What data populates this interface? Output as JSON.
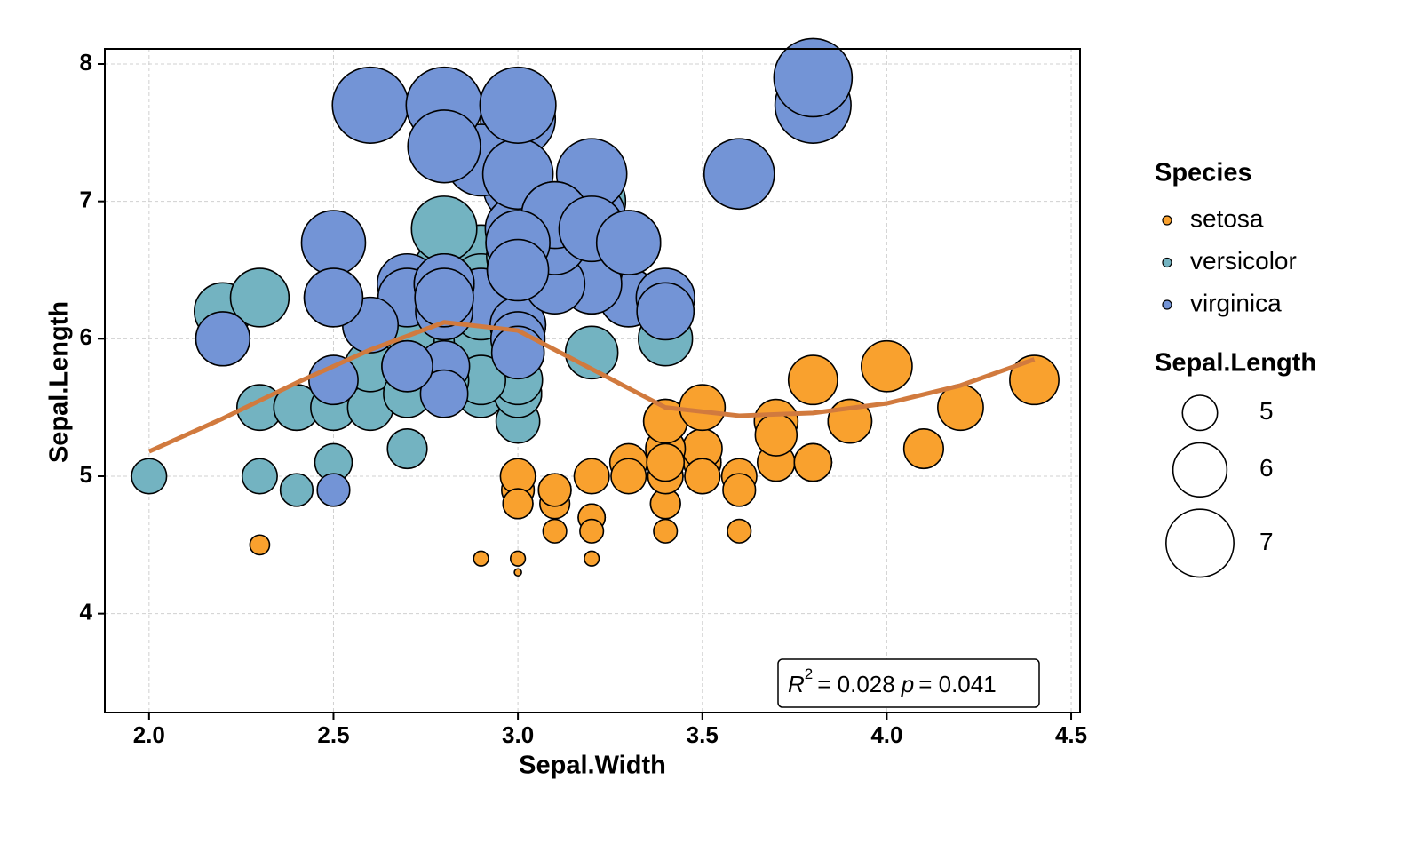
{
  "chart_data": {
    "type": "scatter",
    "x_label": "Sepal.Width",
    "y_label": "Sepal.Length",
    "xlim": [
      1.88,
      4.524
    ],
    "ylim": [
      3.28,
      8.11
    ],
    "xticks": [
      {
        "value": 2,
        "label": "2.0"
      },
      2.5,
      {
        "value": 3,
        "label": "3.0"
      },
      3.5,
      {
        "value": 4,
        "label": "4.0"
      },
      4.5
    ],
    "yticks": [
      4,
      5,
      6,
      7,
      8
    ],
    "grid": true,
    "legend_title": "Species",
    "size_legend_title": "Sepal.Length",
    "size_legend": [
      5,
      6,
      7
    ],
    "series": [
      {
        "name": "setosa",
        "color": "#f9a12e",
        "x": [
          3.5,
          3.0,
          3.2,
          3.1,
          3.6,
          3.9,
          3.4,
          3.4,
          2.9,
          3.1,
          3.7,
          3.4,
          3.0,
          3.0,
          4.0,
          4.4,
          3.9,
          3.5,
          3.8,
          3.8,
          3.4,
          3.7,
          3.6,
          3.3,
          3.4,
          3.0,
          3.4,
          3.5,
          3.4,
          3.2,
          3.1,
          3.4,
          4.1,
          4.2,
          3.1,
          3.2,
          3.5,
          3.6,
          3.0,
          3.4,
          3.5,
          2.3,
          3.2,
          3.5,
          3.8,
          3.0,
          3.8,
          3.2,
          3.7,
          3.3
        ],
        "values": [
          5.1,
          4.9,
          4.7,
          4.6,
          5.0,
          5.4,
          4.6,
          5.0,
          4.4,
          4.9,
          5.4,
          4.8,
          4.8,
          4.3,
          5.8,
          5.7,
          5.4,
          5.1,
          5.7,
          5.1,
          5.4,
          5.1,
          4.6,
          5.1,
          4.8,
          5.0,
          5.0,
          5.2,
          5.2,
          4.7,
          4.8,
          5.4,
          5.2,
          5.5,
          4.9,
          5.0,
          5.5,
          4.9,
          4.4,
          5.1,
          5.0,
          4.5,
          4.4,
          5.0,
          5.1,
          4.8,
          5.1,
          4.6,
          5.3,
          5.0
        ]
      },
      {
        "name": "versicolor",
        "color": "#73b3c1",
        "x": [
          3.2,
          3.2,
          3.1,
          2.3,
          2.8,
          2.8,
          3.3,
          2.4,
          2.9,
          2.7,
          2.0,
          3.0,
          2.2,
          2.9,
          2.9,
          3.1,
          3.0,
          2.7,
          2.2,
          2.5,
          3.2,
          2.8,
          2.5,
          2.8,
          2.9,
          3.0,
          2.8,
          3.0,
          2.9,
          2.6,
          2.4,
          2.4,
          2.7,
          2.7,
          3.0,
          3.4,
          3.1,
          2.3,
          3.0,
          2.5,
          2.6,
          3.0,
          2.6,
          2.3,
          2.7,
          3.0,
          2.9,
          2.9,
          2.5,
          2.8
        ],
        "values": [
          7.0,
          6.4,
          6.9,
          5.5,
          6.5,
          5.7,
          6.3,
          4.9,
          6.6,
          5.2,
          5.0,
          5.9,
          6.0,
          6.1,
          5.6,
          6.7,
          5.6,
          5.8,
          6.2,
          5.6,
          5.9,
          6.1,
          6.3,
          6.1,
          6.4,
          6.6,
          6.8,
          6.7,
          6.0,
          5.7,
          5.5,
          5.5,
          5.8,
          6.0,
          5.4,
          6.0,
          6.7,
          6.3,
          5.6,
          5.5,
          5.5,
          6.1,
          5.8,
          5.0,
          5.6,
          5.7,
          5.7,
          6.2,
          5.1,
          5.7
        ]
      },
      {
        "name": "virginica",
        "color": "#7394d6",
        "x": [
          3.3,
          2.7,
          3.0,
          2.9,
          3.0,
          3.0,
          2.5,
          2.9,
          2.5,
          3.6,
          3.2,
          2.7,
          3.0,
          2.5,
          2.8,
          3.2,
          3.0,
          3.8,
          2.6,
          2.2,
          3.2,
          2.8,
          2.8,
          2.7,
          3.3,
          3.2,
          2.8,
          3.0,
          2.8,
          3.0,
          2.8,
          3.8,
          2.8,
          2.8,
          2.6,
          3.0,
          3.4,
          3.1,
          3.0,
          3.1,
          3.1,
          3.1,
          2.7,
          3.2,
          3.3,
          3.0,
          2.5,
          3.0,
          3.4,
          3.0
        ],
        "values": [
          6.3,
          5.8,
          7.1,
          6.3,
          6.5,
          7.6,
          4.9,
          7.3,
          6.7,
          7.2,
          6.5,
          6.4,
          6.8,
          5.7,
          5.8,
          6.4,
          6.5,
          7.7,
          7.7,
          6.0,
          6.9,
          5.6,
          7.7,
          6.3,
          6.7,
          7.2,
          6.2,
          6.1,
          6.4,
          7.2,
          7.4,
          7.9,
          6.4,
          6.3,
          6.1,
          7.7,
          6.3,
          6.4,
          6.0,
          6.9,
          6.7,
          6.9,
          5.8,
          6.8,
          6.7,
          6.7,
          6.3,
          6.5,
          6.2,
          5.9
        ]
      }
    ],
    "smooth": {
      "color": "#d17a3e",
      "x": [
        2.0,
        2.2,
        2.4,
        2.6,
        2.8,
        3.0,
        3.2,
        3.4,
        3.6,
        3.8,
        4.0,
        4.2,
        4.4
      ],
      "values": [
        5.18,
        5.42,
        5.68,
        5.92,
        6.12,
        6.06,
        5.78,
        5.5,
        5.44,
        5.46,
        5.53,
        5.66,
        5.85
      ]
    },
    "annotation": {
      "r": "R",
      "sup": "2",
      "r_value": "= 0.028",
      "p": "p",
      "p_value": "= 0.041"
    }
  }
}
